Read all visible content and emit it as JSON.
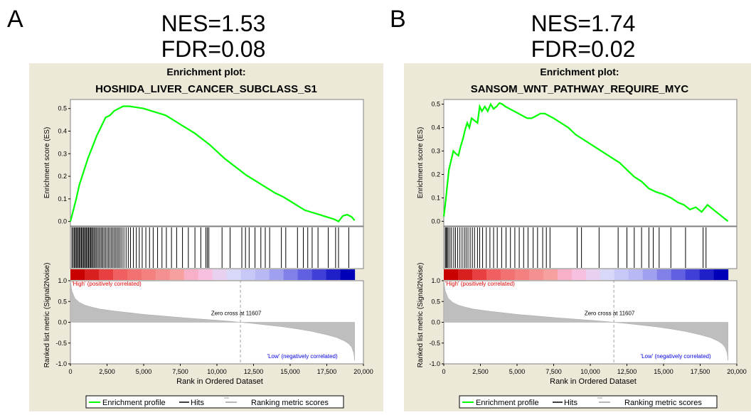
{
  "colors": {
    "panel_bg": "#ECE9D8",
    "plot_bg": "#FFFFFF",
    "es_curve": "#00FF00",
    "hits": "#000000",
    "metric_fill": "#BEBEBE",
    "high_label": "#E00000",
    "low_label": "#0000E0",
    "zero_cross_line": "#A0A0A0"
  },
  "chart_data": [
    {
      "type": "line",
      "panel_letter": "A",
      "stats": {
        "nes": "NES=1.53",
        "fdr": "FDR=0.08"
      },
      "title_line1": "Enrichment plot:",
      "title_line2": "HOSHIDA_LIVER_CANCER_SUBCLASS_S1",
      "ylabel_es": "Enrichment score (ES)",
      "ylabel_metric": "Ranked list metric (Signal2Noise)",
      "xlabel": "Rank in Ordered Dataset",
      "xlim": [
        0,
        20000
      ],
      "es_ylim": [
        -0.02,
        0.54
      ],
      "es_ticks": [
        0.0,
        0.1,
        0.2,
        0.3,
        0.4,
        0.5
      ],
      "es_tick_labels": [
        "0.0",
        "0.1",
        "0.2",
        "0.3",
        "0.4",
        "0.5"
      ],
      "metric_ylim": [
        -1.0,
        1.0
      ],
      "metric_ticks": [
        1.0,
        0.5,
        0.0,
        -0.5,
        -1.0
      ],
      "metric_tick_labels": [
        "1.0",
        "0.5",
        "0.0",
        "-0.5",
        "-1.0"
      ],
      "x_ticks": [
        0,
        2500,
        5000,
        7500,
        10000,
        12500,
        15000,
        17500,
        20000
      ],
      "x_tick_labels": [
        "0",
        "2,500",
        "5,000",
        "7,500",
        "10,000",
        "12,500",
        "15,000",
        "17,500",
        "20,000"
      ],
      "es_profile": {
        "x": [
          0,
          200,
          400,
          600,
          900,
          1200,
          1500,
          1800,
          2100,
          2400,
          2700,
          3000,
          3300,
          3600,
          4000,
          4500,
          5000,
          5500,
          6000,
          6500,
          7000,
          7500,
          8000,
          8500,
          9000,
          9500,
          10000,
          10500,
          11000,
          11500,
          12000,
          12500,
          13000,
          13500,
          14000,
          14500,
          15000,
          15500,
          16000,
          16500,
          17000,
          17500,
          18000,
          18300,
          18600,
          18900,
          19200,
          19400
        ],
        "y": [
          0.0,
          0.05,
          0.1,
          0.16,
          0.22,
          0.28,
          0.33,
          0.38,
          0.42,
          0.46,
          0.47,
          0.49,
          0.5,
          0.51,
          0.51,
          0.505,
          0.5,
          0.49,
          0.48,
          0.47,
          0.45,
          0.43,
          0.41,
          0.39,
          0.365,
          0.34,
          0.31,
          0.28,
          0.255,
          0.23,
          0.205,
          0.185,
          0.165,
          0.145,
          0.125,
          0.11,
          0.09,
          0.07,
          0.05,
          0.04,
          0.03,
          0.02,
          0.01,
          0.0,
          0.025,
          0.03,
          0.02,
          0.005
        ]
      },
      "hits": [
        100,
        180,
        260,
        330,
        400,
        470,
        540,
        610,
        680,
        750,
        820,
        890,
        960,
        1030,
        1100,
        1170,
        1240,
        1310,
        1380,
        1450,
        1520,
        1600,
        1680,
        1760,
        1850,
        1940,
        2030,
        2120,
        2210,
        2300,
        2400,
        2500,
        2600,
        2700,
        2800,
        2900,
        3000,
        3100,
        3200,
        3300,
        3400,
        3520,
        3650,
        3800,
        3950,
        4100,
        4300,
        4500,
        4700,
        4900,
        5150,
        5400,
        5650,
        5950,
        6250,
        6550,
        6900,
        7250,
        7650,
        8050,
        8500,
        8900,
        9250,
        9350,
        9450,
        10350,
        10900,
        11700,
        11950,
        12200,
        12600,
        13000,
        13300,
        13600,
        14400,
        14700,
        15500,
        15900,
        16200,
        16500,
        16900,
        17600,
        18100,
        18300,
        19000
      ],
      "metric_curve": {
        "x": [
          0,
          100,
          300,
          600,
          1000,
          1500,
          2000,
          3000,
          4000,
          5000,
          6000,
          7000,
          8000,
          9000,
          10000,
          11000,
          11607,
          12500,
          13500,
          14500,
          15500,
          16500,
          17500,
          18200,
          18700,
          19000,
          19200,
          19350,
          19400
        ],
        "y": [
          1.0,
          0.75,
          0.58,
          0.48,
          0.41,
          0.36,
          0.32,
          0.27,
          0.23,
          0.19,
          0.16,
          0.13,
          0.1,
          0.075,
          0.05,
          0.02,
          0.0,
          -0.03,
          -0.07,
          -0.11,
          -0.16,
          -0.22,
          -0.3,
          -0.37,
          -0.45,
          -0.52,
          -0.6,
          -0.75,
          -0.92
        ]
      },
      "zero_cross_x": 11607,
      "zero_cross_label": "Zero cross at 11607",
      "high_label": "'High' (positively correlated)",
      "low_label": "'Low' (negatively correlated)",
      "legend": {
        "enrichment_profile": "Enrichment profile",
        "hits": "Hits",
        "ranking_metric": "Ranking metric scores"
      }
    },
    {
      "type": "line",
      "panel_letter": "B",
      "stats": {
        "nes": "NES=1.74",
        "fdr": "FDR=0.02"
      },
      "title_line1": "Enrichment plot:",
      "title_line2": "SANSOM_WNT_PATHWAY_REQUIRE_MYC",
      "ylabel_es": "Enrichment score (ES)",
      "ylabel_metric": "Ranked list metric (Signal2Noise)",
      "xlabel": "Rank in Ordered Dataset",
      "xlim": [
        0,
        20000
      ],
      "es_ylim": [
        -0.02,
        0.52
      ],
      "es_ticks": [
        0.0,
        0.1,
        0.2,
        0.3,
        0.4,
        0.5
      ],
      "es_tick_labels": [
        "0.0",
        "0.1",
        "0.2",
        "0.3",
        "0.4",
        "0.5"
      ],
      "metric_ylim": [
        -1.0,
        1.0
      ],
      "metric_ticks": [
        1.0,
        0.5,
        0.0,
        -0.5,
        -1.0
      ],
      "metric_tick_labels": [
        "1.0",
        "0.5",
        "0.0",
        "-0.5",
        "-1.0"
      ],
      "x_ticks": [
        0,
        2500,
        5000,
        7500,
        10000,
        12500,
        15000,
        17500,
        20000
      ],
      "x_tick_labels": [
        "0",
        "2,500",
        "5,000",
        "7,500",
        "10,000",
        "12,500",
        "15,000",
        "17,500",
        "20,000"
      ],
      "es_profile": {
        "x": [
          0,
          80,
          150,
          250,
          350,
          500,
          650,
          800,
          1000,
          1150,
          1300,
          1450,
          1600,
          1750,
          1900,
          2100,
          2300,
          2450,
          2600,
          2800,
          3000,
          3200,
          3400,
          3600,
          3800,
          4000,
          4200,
          4500,
          4800,
          5100,
          5400,
          5700,
          6000,
          6300,
          6600,
          6900,
          7200,
          7500,
          8000,
          8500,
          9000,
          9500,
          10000,
          10500,
          11000,
          11500,
          12000,
          12500,
          13000,
          13500,
          14000,
          14500,
          15000,
          15500,
          16000,
          16400,
          16800,
          17200,
          17600,
          18000,
          18500,
          19000,
          19400
        ],
        "y": [
          0.02,
          0.06,
          0.1,
          0.16,
          0.22,
          0.26,
          0.3,
          0.29,
          0.28,
          0.32,
          0.35,
          0.39,
          0.42,
          0.4,
          0.44,
          0.43,
          0.42,
          0.49,
          0.47,
          0.49,
          0.47,
          0.5,
          0.48,
          0.49,
          0.505,
          0.5,
          0.49,
          0.48,
          0.47,
          0.46,
          0.45,
          0.44,
          0.44,
          0.45,
          0.46,
          0.46,
          0.45,
          0.44,
          0.42,
          0.4,
          0.37,
          0.35,
          0.33,
          0.31,
          0.29,
          0.27,
          0.25,
          0.22,
          0.19,
          0.17,
          0.14,
          0.125,
          0.115,
          0.1,
          0.08,
          0.07,
          0.05,
          0.06,
          0.04,
          0.07,
          0.045,
          0.02,
          0.0
        ]
      },
      "hits": [
        100,
        160,
        230,
        300,
        420,
        530,
        680,
        800,
        950,
        1100,
        1250,
        1400,
        1520,
        1650,
        1800,
        1950,
        2100,
        2300,
        2450,
        2650,
        2900,
        3150,
        3400,
        3650,
        3950,
        4250,
        4550,
        4850,
        5150,
        5450,
        5750,
        6100,
        6400,
        6750,
        7000,
        7250,
        9100,
        9400,
        10600,
        11900,
        12500,
        13000,
        13500,
        14000,
        14300,
        14700,
        15500,
        16500,
        17700,
        17900
      ],
      "metric_curve": {
        "x": [
          0,
          100,
          300,
          600,
          1000,
          1500,
          2000,
          3000,
          4000,
          5000,
          6000,
          7000,
          8000,
          9000,
          10000,
          11000,
          11607,
          12500,
          13500,
          14500,
          15500,
          16500,
          17500,
          18200,
          18700,
          19000,
          19200,
          19350,
          19400
        ],
        "y": [
          1.0,
          0.75,
          0.58,
          0.48,
          0.41,
          0.36,
          0.32,
          0.27,
          0.23,
          0.19,
          0.16,
          0.13,
          0.1,
          0.075,
          0.05,
          0.02,
          0.0,
          -0.03,
          -0.07,
          -0.11,
          -0.16,
          -0.22,
          -0.3,
          -0.37,
          -0.45,
          -0.52,
          -0.6,
          -0.75,
          -0.92
        ]
      },
      "zero_cross_x": 11607,
      "zero_cross_label": "Zero cross at 11607",
      "high_label": "'High' (positively correlated)",
      "low_label": "'Low' (negatively correlated)",
      "legend": {
        "enrichment_profile": "Enrichment profile",
        "hits": "Hits",
        "ranking_metric": "Ranking metric scores"
      }
    }
  ]
}
